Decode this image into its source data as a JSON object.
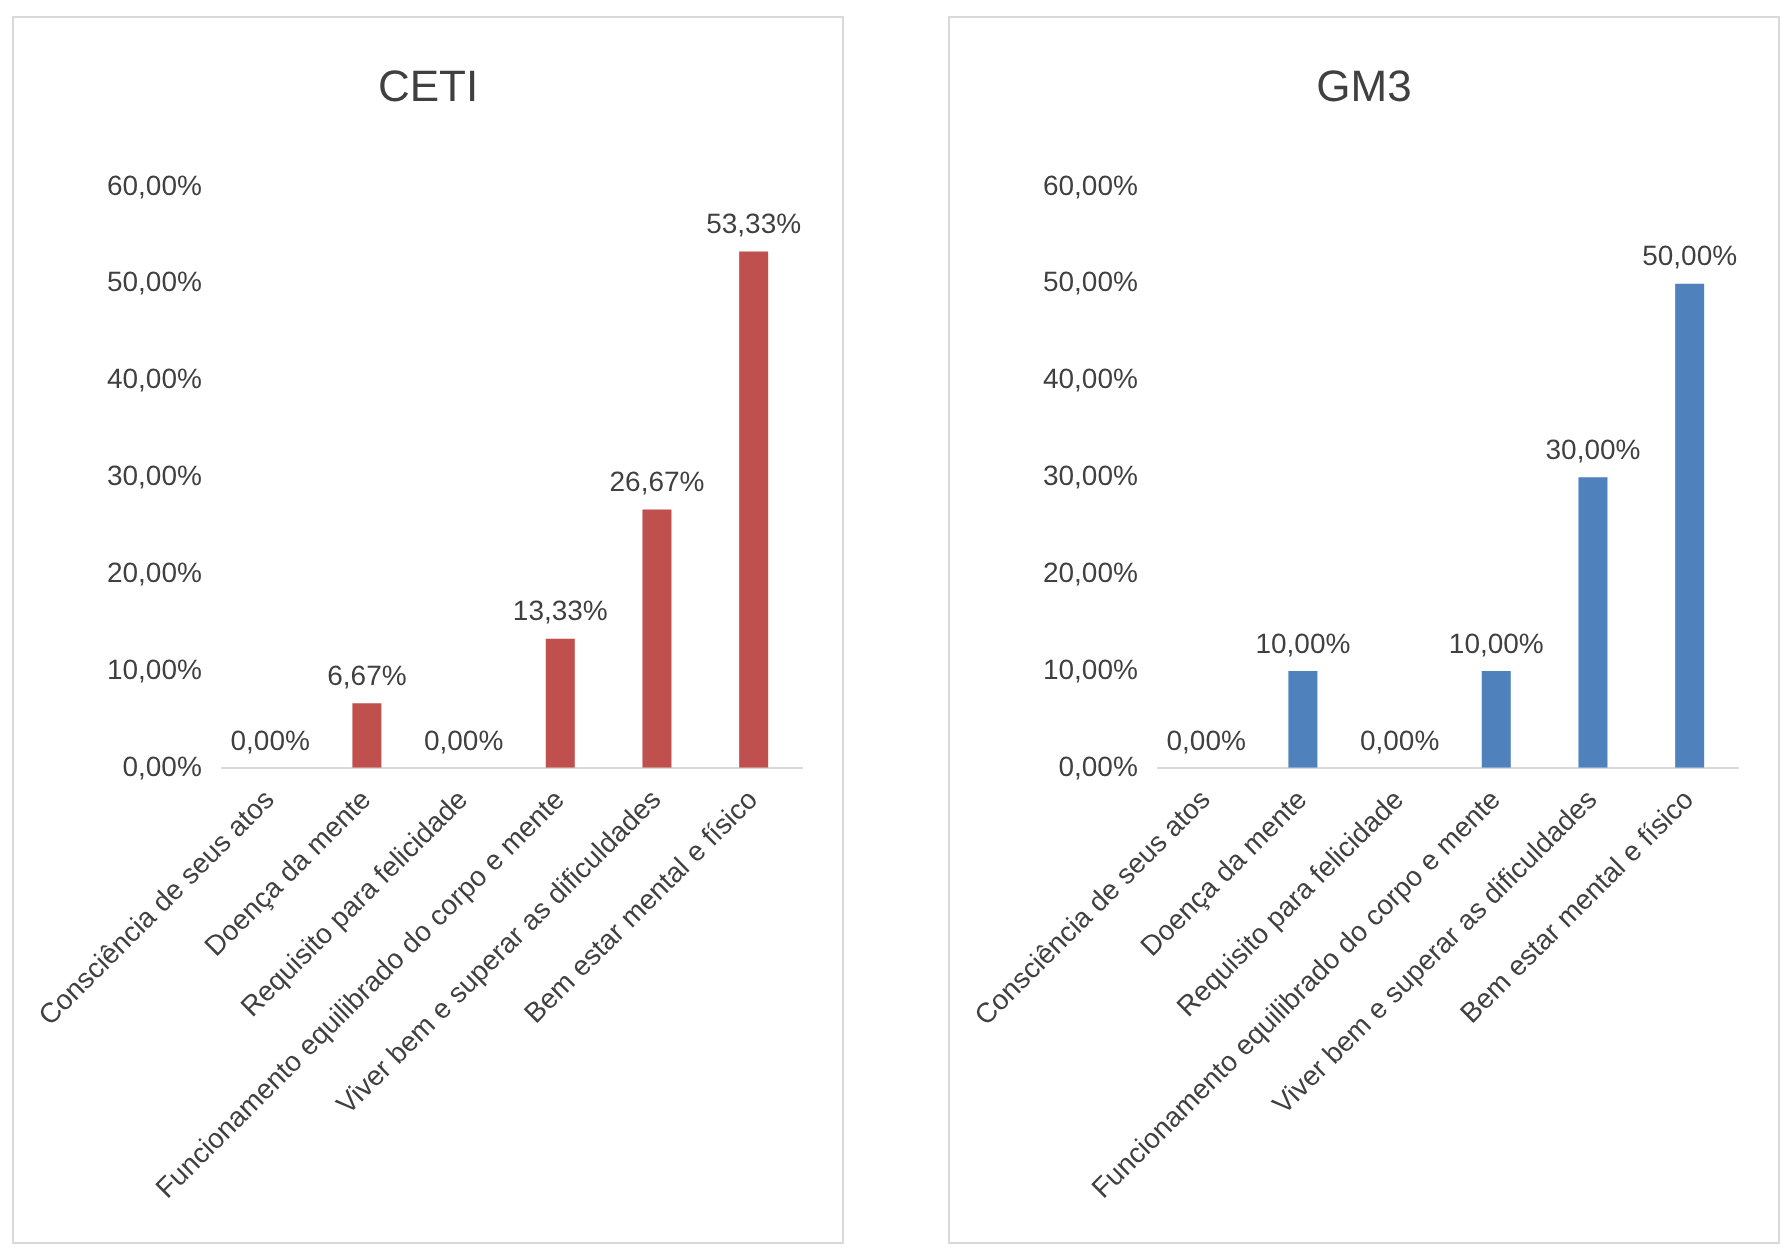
{
  "chart_data": [
    {
      "type": "bar",
      "title": "CETI",
      "categories": [
        "Consciência de seus atos",
        "Doença da mente",
        "Requisito para felicidade",
        "Funcionamento equilibrado do corpo e mente",
        "Viver bem e superar as dificuldades",
        "Bem estar mental e físico"
      ],
      "series": [
        {
          "color": "#c0504d",
          "values": [
            0,
            6.67,
            0,
            13.33,
            26.67,
            53.33
          ],
          "value_labels": [
            "0,00%",
            "6,67%",
            "0,00%",
            "13,33%",
            "26,67%",
            "53,33%"
          ]
        }
      ],
      "ylim": [
        0,
        60
      ],
      "yticks": [
        {
          "value": 0,
          "label": "0,00%"
        },
        {
          "value": 10,
          "label": "10,00%"
        },
        {
          "value": 20,
          "label": "20,00%"
        },
        {
          "value": 30,
          "label": "30,00%"
        },
        {
          "value": 40,
          "label": "40,00%"
        },
        {
          "value": 50,
          "label": "50,00%"
        },
        {
          "value": 60,
          "label": "60,00%"
        }
      ]
    },
    {
      "type": "bar",
      "title": "GM3",
      "categories": [
        "Consciência de seus atos",
        "Doença da mente",
        "Requisito para felicidade",
        "Funcionamento equilibrado do corpo e mente",
        "Viver bem e superar as dificuldades",
        "Bem estar mental e físico"
      ],
      "series": [
        {
          "color": "#4f81bd",
          "values": [
            0,
            10,
            0,
            10,
            30,
            50
          ],
          "value_labels": [
            "0,00%",
            "10,00%",
            "0,00%",
            "10,00%",
            "30,00%",
            "50,00%"
          ]
        }
      ],
      "ylim": [
        0,
        60
      ],
      "yticks": [
        {
          "value": 0,
          "label": "0,00%"
        },
        {
          "value": 10,
          "label": "10,00%"
        },
        {
          "value": 20,
          "label": "20,00%"
        },
        {
          "value": 30,
          "label": "30,00%"
        },
        {
          "value": 40,
          "label": "40,00%"
        },
        {
          "value": 50,
          "label": "50,00%"
        },
        {
          "value": 60,
          "label": "60,00%"
        }
      ]
    }
  ]
}
